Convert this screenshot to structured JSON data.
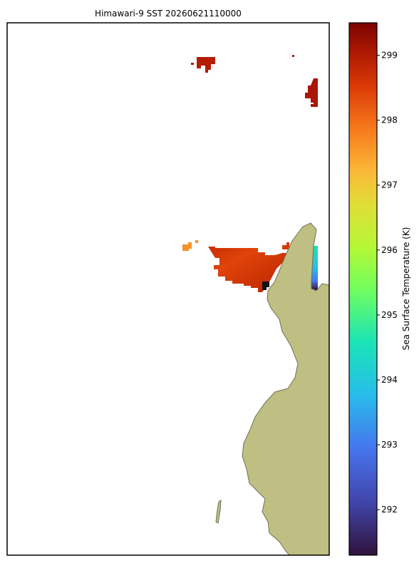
{
  "chart_data": {
    "type": "map",
    "title": "Himawari-9 SST 20260621110000",
    "colorbar": {
      "label": "Sea Surface Temperature (K)",
      "lim": [
        291.3,
        299.5
      ],
      "ticks": [
        292,
        293,
        294,
        295,
        296,
        297,
        298,
        299
      ]
    }
  }
}
